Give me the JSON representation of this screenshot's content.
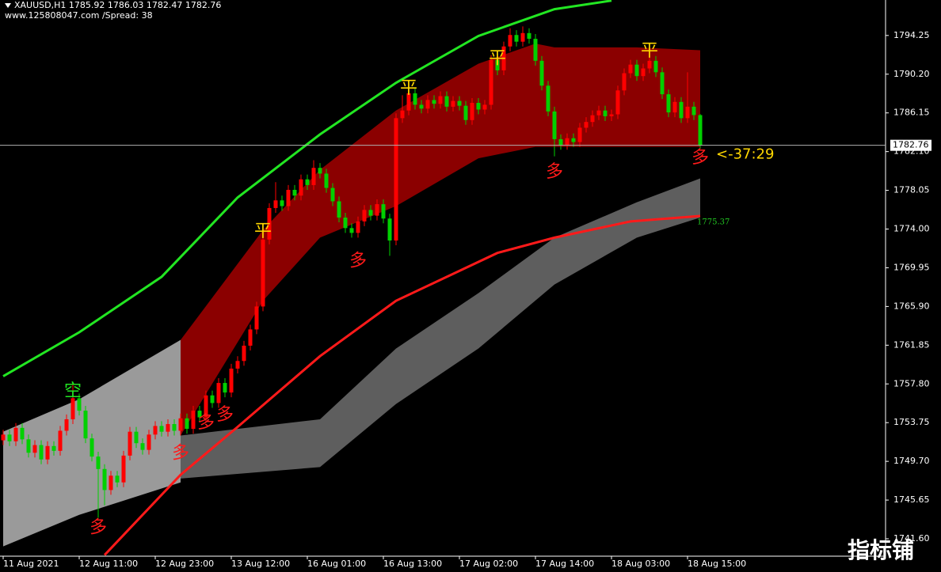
{
  "chart_data": {
    "type": "candlestick",
    "title": "XAUUSD,H1  1785.92 1786.03 1782.47 1782.76",
    "subtitle": "www.125808047.com /Spread:  38",
    "countdown": "<-37:29",
    "watermark": "指标铺",
    "current_price": 1782.76,
    "ylim": [
      1739.78,
      1797.96
    ],
    "yticks": [
      1794.25,
      {
        "value": 1790.2,
        "label": "1790.20"
      },
      1786.15,
      {
        "value": 1782.1,
        "label": "1782.10"
      },
      1778.05,
      {
        "value": 1774,
        "label": "1774.00"
      },
      1769.95,
      {
        "value": 1765.9,
        "label": "1765.90"
      },
      1761.85,
      {
        "value": 1757.8,
        "label": "1757.80"
      },
      1753.75,
      {
        "value": 1749.7,
        "label": "1749.70"
      },
      1745.65,
      {
        "value": 1741.6,
        "label": "1741.60"
      }
    ],
    "categories": [
      "11 Aug 2021",
      null,
      null,
      null,
      null,
      null,
      null,
      null,
      null,
      null,
      null,
      null,
      "12 Aug 11:00",
      null,
      null,
      null,
      null,
      null,
      null,
      null,
      null,
      null,
      null,
      null,
      "12 Aug 23:00",
      null,
      null,
      null,
      null,
      null,
      null,
      null,
      null,
      null,
      null,
      null,
      "13 Aug 12:00",
      null,
      null,
      null,
      null,
      null,
      null,
      null,
      null,
      null,
      null,
      null,
      "16 Aug 01:00",
      null,
      null,
      null,
      null,
      null,
      null,
      null,
      null,
      null,
      null,
      null,
      "16 Aug 13:00",
      null,
      null,
      null,
      null,
      null,
      null,
      null,
      null,
      null,
      null,
      null,
      "17 Aug 02:00",
      null,
      null,
      null,
      null,
      null,
      null,
      null,
      null,
      null,
      null,
      null,
      "17 Aug 14:00",
      null,
      null,
      null,
      null,
      null,
      null,
      null,
      null,
      null,
      null,
      null,
      "18 Aug 03:00",
      null,
      null,
      null,
      null,
      null,
      null,
      null,
      null,
      null,
      null,
      null,
      "18 Aug 15:00",
      null,
      null
    ],
    "candles": {
      "up_color": "#ff0000",
      "down_color": "#00d000",
      "open": [
        1751.9,
        1752.5,
        1751.8,
        1753.2,
        1752.0,
        1750.6,
        1751.4,
        1749.9,
        1751.3,
        1750.8,
        1752.9,
        1754.1,
        1756.3,
        1755.0,
        1752.1,
        1750.2,
        1748.9,
        1746.7,
        1748.2,
        1747.5,
        1750.3,
        1752.8,
        1751.6,
        1750.9,
        1752.5,
        1753.4,
        1752.8,
        1753.6,
        1752.9,
        1754.2,
        1753.1,
        1755.0,
        1754.3,
        1756.6,
        1755.8,
        1757.9,
        1756.9,
        1759.4,
        1760.2,
        1761.8,
        1763.5,
        1765.9,
        1772.9,
        1776.2,
        1777.0,
        1776.4,
        1778.1,
        1777.5,
        1779.2,
        1778.6,
        1780.4,
        1779.8,
        1778.3,
        1776.9,
        1775.2,
        1774.1,
        1773.6,
        1774.8,
        1776.0,
        1775.4,
        1776.6,
        1775.1,
        1772.8,
        1785.6,
        1786.4,
        1788.2,
        1787.0,
        1786.6,
        1787.5,
        1787.1,
        1787.9,
        1786.8,
        1787.4,
        1786.9,
        1785.4,
        1787.2,
        1786.5,
        1787.0,
        1791.7,
        1790.6,
        1793.1,
        1794.3,
        1793.6,
        1794.5,
        1793.9,
        1791.6,
        1789.0,
        1786.3,
        1783.4,
        1782.8,
        1783.5,
        1783.1,
        1784.6,
        1785.2,
        1785.9,
        1786.4,
        1785.8,
        1786.0,
        1788.5,
        1790.3,
        1791.2,
        1790.0,
        1790.8,
        1791.6,
        1790.4,
        1788.1,
        1786.2,
        1787.3,
        1785.6,
        1786.8,
        1785.92
      ],
      "high": [
        1753.0,
        1753.0,
        1753.7,
        1753.7,
        1752.5,
        1751.9,
        1751.9,
        1751.8,
        1751.8,
        1753.4,
        1754.6,
        1757.8,
        1756.8,
        1755.5,
        1752.6,
        1750.7,
        1749.4,
        1748.7,
        1748.7,
        1750.8,
        1753.3,
        1753.3,
        1752.1,
        1753.0,
        1753.9,
        1753.9,
        1754.1,
        1754.1,
        1754.7,
        1754.7,
        1755.5,
        1755.5,
        1757.1,
        1757.1,
        1758.4,
        1758.4,
        1759.9,
        1760.7,
        1762.3,
        1764.0,
        1766.4,
        1773.4,
        1776.7,
        1778.9,
        1777.5,
        1778.6,
        1778.6,
        1779.7,
        1779.7,
        1781.2,
        1780.9,
        1780.3,
        1778.8,
        1777.4,
        1775.7,
        1774.6,
        1775.3,
        1776.5,
        1776.5,
        1777.1,
        1777.1,
        1775.6,
        1786.1,
        1788.0,
        1788.7,
        1788.7,
        1787.5,
        1788.0,
        1788.0,
        1788.4,
        1788.4,
        1787.9,
        1787.9,
        1787.4,
        1787.7,
        1787.7,
        1787.5,
        1792.2,
        1792.2,
        1793.6,
        1795.0,
        1794.8,
        1795.2,
        1795.0,
        1794.4,
        1792.1,
        1789.5,
        1786.8,
        1783.9,
        1784.0,
        1784.0,
        1785.1,
        1785.7,
        1786.4,
        1786.9,
        1786.9,
        1786.5,
        1789.0,
        1790.8,
        1791.7,
        1791.7,
        1791.3,
        1792.1,
        1792.1,
        1790.9,
        1788.6,
        1787.8,
        1787.8,
        1790.4,
        1787.3,
        1786.03
      ],
      "low": [
        1751.4,
        1751.3,
        1751.3,
        1751.5,
        1750.1,
        1750.1,
        1749.4,
        1749.4,
        1750.3,
        1750.3,
        1752.4,
        1753.6,
        1754.5,
        1751.6,
        1749.7,
        1743.8,
        1745.1,
        1746.2,
        1747.0,
        1747.0,
        1749.8,
        1751.1,
        1750.4,
        1750.4,
        1752.0,
        1752.3,
        1752.3,
        1752.4,
        1752.4,
        1752.6,
        1752.6,
        1753.8,
        1753.8,
        1755.3,
        1755.3,
        1756.4,
        1756.4,
        1758.9,
        1759.7,
        1761.3,
        1763.0,
        1765.4,
        1772.4,
        1775.7,
        1775.9,
        1775.9,
        1777.0,
        1777.0,
        1778.1,
        1778.1,
        1779.3,
        1777.8,
        1776.4,
        1774.7,
        1773.6,
        1773.1,
        1773.1,
        1774.3,
        1774.9,
        1774.9,
        1774.6,
        1771.2,
        1772.3,
        1785.1,
        1785.9,
        1786.5,
        1786.1,
        1786.1,
        1786.6,
        1786.6,
        1786.3,
        1786.3,
        1786.4,
        1784.9,
        1784.9,
        1786.0,
        1786.0,
        1786.5,
        1790.1,
        1790.1,
        1792.6,
        1793.1,
        1793.1,
        1793.4,
        1791.1,
        1788.5,
        1785.8,
        1781.6,
        1782.3,
        1782.3,
        1782.6,
        1782.6,
        1784.1,
        1784.7,
        1785.4,
        1785.3,
        1785.3,
        1785.5,
        1788.0,
        1789.8,
        1789.5,
        1789.5,
        1790.3,
        1789.9,
        1787.6,
        1785.7,
        1785.7,
        1785.1,
        1785.1,
        1785.4,
        1782.47
      ],
      "close": [
        1752.5,
        1751.8,
        1753.2,
        1752.0,
        1750.6,
        1751.4,
        1749.9,
        1751.3,
        1750.8,
        1752.9,
        1754.1,
        1756.3,
        1755.0,
        1752.1,
        1750.2,
        1748.9,
        1746.7,
        1748.2,
        1747.5,
        1750.3,
        1752.8,
        1751.6,
        1750.9,
        1752.5,
        1753.4,
        1752.8,
        1753.6,
        1752.9,
        1754.2,
        1753.1,
        1755.0,
        1754.3,
        1756.6,
        1755.8,
        1757.9,
        1756.9,
        1759.4,
        1760.2,
        1761.8,
        1763.5,
        1765.9,
        1772.9,
        1776.2,
        1777.0,
        1776.4,
        1778.1,
        1777.5,
        1779.2,
        1778.6,
        1780.4,
        1779.8,
        1778.3,
        1776.9,
        1775.2,
        1774.1,
        1773.6,
        1774.8,
        1776.0,
        1775.4,
        1776.6,
        1775.1,
        1772.8,
        1785.6,
        1786.4,
        1788.2,
        1787.0,
        1786.6,
        1787.5,
        1787.1,
        1787.9,
        1786.8,
        1787.4,
        1786.9,
        1785.4,
        1787.2,
        1786.5,
        1787.0,
        1791.7,
        1790.6,
        1793.1,
        1794.3,
        1793.6,
        1794.5,
        1793.9,
        1791.6,
        1789.0,
        1786.3,
        1783.4,
        1782.8,
        1783.5,
        1783.1,
        1784.6,
        1785.2,
        1785.9,
        1786.4,
        1785.8,
        1786.0,
        1788.5,
        1790.3,
        1791.2,
        1790.0,
        1790.8,
        1791.6,
        1790.4,
        1788.1,
        1786.2,
        1787.3,
        1785.6,
        1786.8,
        1785.92,
        1782.76
      ]
    },
    "bands": [
      {
        "color": "#9a9a9a",
        "x": [
          0,
          12,
          28
        ],
        "upper": [
          1752.8,
          1756.2,
          1762.4
        ],
        "lower": [
          1740.8,
          1744.1,
          1747.5
        ]
      },
      {
        "color": "#5e5e5e",
        "x": [
          28,
          50,
          62,
          75,
          87,
          100,
          110
        ],
        "upper": [
          1752.4,
          1754.1,
          1761.5,
          1767.3,
          1773.1,
          1776.8,
          1779.3
        ],
        "lower": [
          1747.9,
          1749.1,
          1755.7,
          1761.5,
          1768.2,
          1773.1,
          1775.2
        ]
      },
      {
        "color": "#8b0000",
        "x": [
          28,
          41,
          50,
          62,
          75,
          84,
          87,
          100,
          110
        ],
        "upper": [
          1762.4,
          1773.9,
          1780.2,
          1786.4,
          1791.3,
          1793.4,
          1793.0,
          1793.0,
          1792.7
        ],
        "lower": [
          1752.4,
          1766.5,
          1773.1,
          1776.4,
          1781.4,
          1782.6,
          1782.6,
          1782.6,
          1782.6
        ]
      }
    ],
    "lines": [
      {
        "color": "#22e622",
        "x": [
          0,
          12,
          25,
          37,
          50,
          62,
          75,
          87,
          96
        ],
        "values": [
          1758.6,
          1763.2,
          1769.0,
          1777.3,
          1783.9,
          1789.3,
          1794.2,
          1797.0,
          1797.9
        ]
      },
      {
        "color": "#ff1a1a",
        "label_color": "#22c822",
        "x": [
          16,
          28,
          37,
          50,
          62,
          78,
          87,
          99,
          110
        ],
        "values": [
          1739.9,
          1748.3,
          1753.3,
          1760.7,
          1766.5,
          1771.5,
          1773.1,
          1774.8,
          1775.37
        ]
      }
    ],
    "annotations": [
      {
        "text": "空",
        "color": "#22e622",
        "x": 11,
        "y": 1757.0
      },
      {
        "text": "多",
        "color": "#ff1a1a",
        "x": 15,
        "y": 1742.7
      },
      {
        "text": "多",
        "color": "#ff1a1a",
        "x": 28,
        "y": 1750.5
      },
      {
        "text": "多",
        "color": "#ff1a1a",
        "x": 32,
        "y": 1753.7
      },
      {
        "text": "多",
        "color": "#ff1a1a",
        "x": 35,
        "y": 1754.5
      },
      {
        "text": "平",
        "color": "#ffd700",
        "x": 41,
        "y": 1773.7
      },
      {
        "text": "多",
        "color": "#ff1a1a",
        "x": 56,
        "y": 1770.6
      },
      {
        "text": "平",
        "color": "#ffd700",
        "x": 64,
        "y": 1788.7
      },
      {
        "text": "平",
        "color": "#ffd700",
        "x": 78,
        "y": 1791.8
      },
      {
        "text": "多",
        "color": "#ff1a1a",
        "x": 87,
        "y": 1779.9
      },
      {
        "text": "平",
        "color": "#ffd700",
        "x": 102,
        "y": 1792.6
      },
      {
        "text": "多",
        "color": "#ff1a1a",
        "x": 110,
        "y": 1781.4
      }
    ]
  }
}
